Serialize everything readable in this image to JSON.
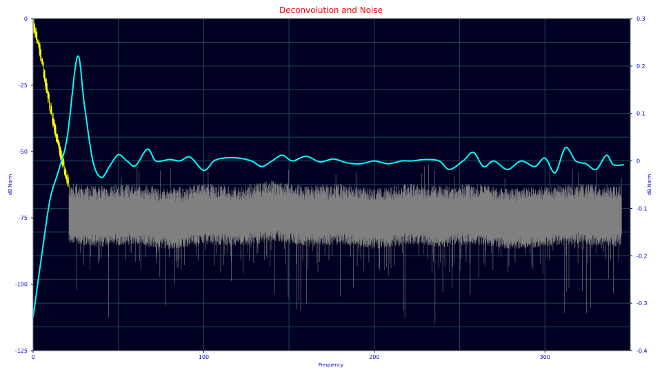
{
  "chart_data": {
    "type": "line",
    "title": "Deconvolution and Noise",
    "xlabel": "Frequency",
    "ylabel_left": "dB Norm",
    "ylabel_right": "dB Norm",
    "xlim": [
      0,
      350
    ],
    "ylim_left": [
      -125,
      0
    ],
    "ylim_right": [
      -0.4,
      0.3
    ],
    "x_ticks": [
      "0",
      "100",
      "200",
      "300"
    ],
    "x_tick_values": [
      0,
      100,
      200,
      300
    ],
    "y_ticks_left": [
      "0",
      "-25",
      "-50",
      "-75",
      "-100",
      "-125"
    ],
    "y_tick_values_left": [
      0,
      -25,
      -50,
      -75,
      -100,
      -125
    ],
    "y_ticks_right": [
      "0.3",
      "0.2",
      "0.1",
      "0",
      "-0.1",
      "-0.2",
      "-0.3",
      "-0.4"
    ],
    "y_tick_values_right": [
      0.3,
      0.2,
      0.1,
      0,
      -0.1,
      -0.2,
      -0.3,
      -0.4
    ],
    "grid": true,
    "series": [
      {
        "axis": "left",
        "color": "#ffff00",
        "x": [
          0,
          2,
          4,
          6,
          8,
          10,
          12,
          14,
          16,
          18,
          20,
          21
        ],
        "y": [
          -2,
          -6,
          -12,
          -19,
          -26,
          -33,
          -39,
          -45,
          -50,
          -55,
          -60,
          -63
        ]
      },
      {
        "axis": "left",
        "color": "#808080",
        "x": [
          21,
          40,
          60,
          80,
          100,
          120,
          140,
          160,
          180,
          200,
          220,
          240,
          260,
          280,
          300,
          320,
          345
        ],
        "y": [
          -72,
          -73,
          -72,
          -74,
          -72,
          -73,
          -71,
          -73,
          -72,
          -74,
          -72,
          -73,
          -72,
          -74,
          -73,
          -72,
          -73
        ],
        "band": [
          -62,
          -85
        ]
      },
      {
        "axis": "right",
        "color": "#00ffff",
        "x": [
          0,
          5,
          10,
          15,
          20,
          26,
          30,
          35,
          40,
          45,
          50,
          55,
          60,
          67,
          72,
          80,
          86,
          92,
          100,
          106,
          112,
          120,
          128,
          134,
          140,
          146,
          152,
          160,
          168,
          176,
          184,
          192,
          200,
          208,
          216,
          222,
          230,
          238,
          244,
          252,
          258,
          264,
          270,
          278,
          286,
          294,
          300,
          306,
          312,
          318,
          324,
          330,
          336,
          340,
          346
        ],
        "y": [
          -0.33,
          -0.2,
          -0.08,
          -0.02,
          0.05,
          0.22,
          0.12,
          0.0,
          -0.035,
          -0.01,
          0.013,
          0.0,
          -0.01,
          0.025,
          0.0,
          0.003,
          0.0,
          0.008,
          -0.02,
          0.0,
          0.006,
          0.006,
          0.0,
          -0.012,
          0.0,
          0.012,
          0.0,
          0.01,
          -0.002,
          0.004,
          -0.004,
          -0.006,
          0.0,
          -0.006,
          0.0,
          0.0,
          0.003,
          0.0,
          -0.018,
          0.0,
          0.018,
          -0.012,
          0.0,
          -0.018,
          0.0,
          -0.012,
          0.006,
          -0.025,
          0.028,
          0.0,
          -0.006,
          -0.018,
          0.012,
          -0.008,
          -0.008
        ]
      }
    ]
  }
}
